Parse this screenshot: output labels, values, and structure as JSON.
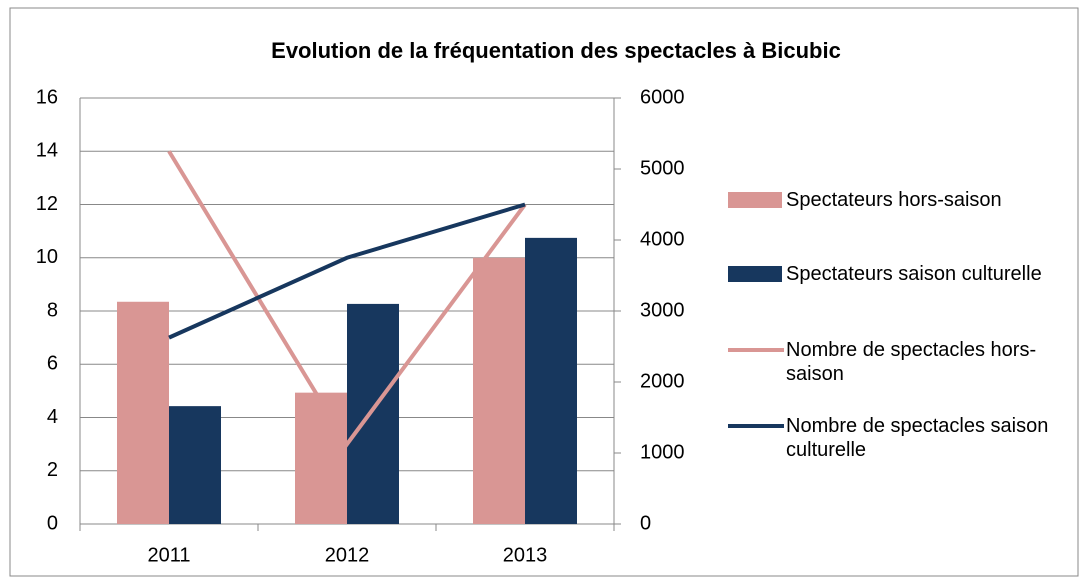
{
  "chart_data": {
    "type": "bar",
    "title": "Evolution de la fréquentation des spectacles à Bicubic",
    "categories": [
      "2011",
      "2012",
      "2013"
    ],
    "series": [
      {
        "name": "Spectateurs hors-saison",
        "type": "bar",
        "axis": "y2",
        "color": "#d99694",
        "values": [
          3130,
          1850,
          3750
        ]
      },
      {
        "name": "Spectateurs saison culturelle",
        "type": "bar",
        "axis": "y2",
        "color": "#17375e",
        "values": [
          1660,
          3100,
          4030
        ]
      },
      {
        "name": "Nombre de spectacles hors-saison",
        "type": "line",
        "axis": "y",
        "color": "#d99694",
        "values": [
          14,
          3,
          12
        ]
      },
      {
        "name": "Nombre de spectacles saison culturelle",
        "type": "line",
        "axis": "y",
        "color": "#17375e",
        "values": [
          7,
          10,
          12
        ]
      }
    ],
    "ylim": [
      0,
      16
    ],
    "yticks": [
      0,
      2,
      4,
      6,
      8,
      10,
      12,
      14,
      16
    ],
    "y2lim": [
      0,
      6000
    ],
    "y2ticks": [
      0,
      1000,
      2000,
      3000,
      4000,
      5000,
      6000
    ],
    "grid": true,
    "legend": "right"
  }
}
